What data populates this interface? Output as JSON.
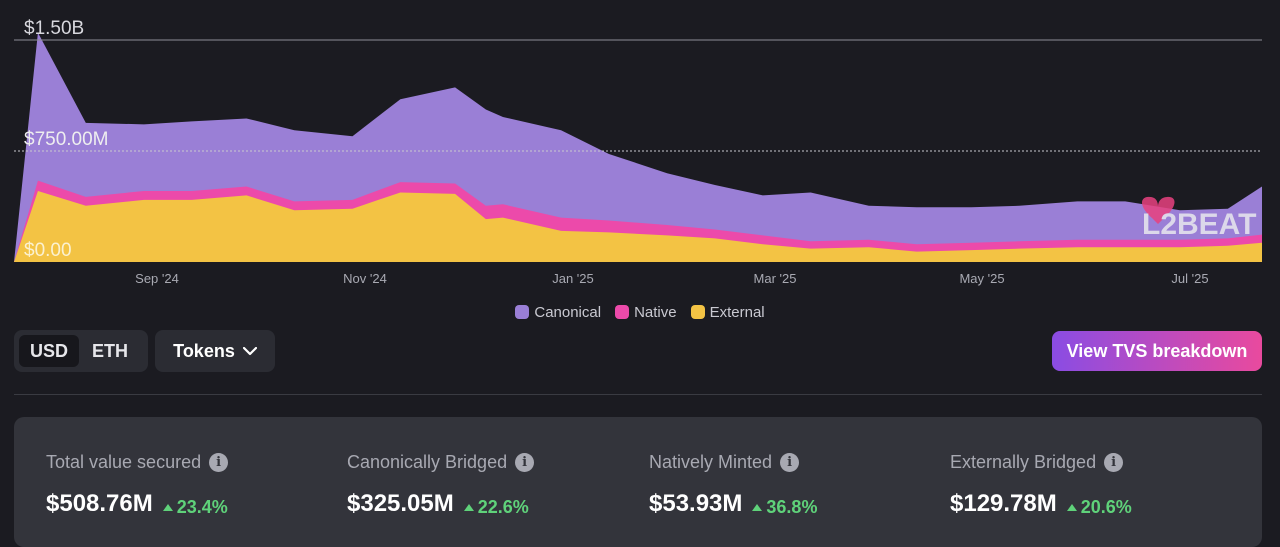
{
  "chart": {
    "y_ticks": [
      "$1.50B",
      "$750.00M",
      "$0.00"
    ],
    "x_ticks": [
      "Sep '24",
      "Nov '24",
      "Jan '25",
      "Mar '25",
      "May '25",
      "Jul '25"
    ],
    "watermark": "L2BEAT",
    "colors": {
      "canonical": "#9a7fd6",
      "native": "#ec4aaa",
      "external": "#f3c344"
    }
  },
  "chart_data": {
    "type": "area",
    "stacked": true,
    "ylim": [
      0,
      1500000000
    ],
    "x_tick_labels": [
      "Sep '24",
      "Nov '24",
      "Jan '25",
      "Mar '25",
      "May '25",
      "Jul '25"
    ],
    "y_tick_labels": [
      "$1.50B",
      "$750.00M",
      "$0.00"
    ],
    "grid": true,
    "legend": "bottom-center",
    "x": [
      "2024-08-01",
      "2024-08-15",
      "2024-09-01",
      "2024-09-15",
      "2024-10-01",
      "2024-10-15",
      "2024-11-01",
      "2024-11-15",
      "2024-12-01",
      "2024-12-10",
      "2024-12-15",
      "2025-01-01",
      "2025-01-15",
      "2025-02-01",
      "2025-02-15",
      "2025-03-01",
      "2025-03-15",
      "2025-04-01",
      "2025-04-15",
      "2025-05-01",
      "2025-05-15",
      "2025-06-01",
      "2025-06-15",
      "2025-07-01",
      "2025-07-15",
      "2025-07-25"
    ],
    "series": [
      {
        "name": "External",
        "values": [
          480,
          380,
          420,
          420,
          450,
          350,
          360,
          470,
          460,
          290,
          300,
          210,
          200,
          180,
          160,
          120,
          90,
          100,
          70,
          80,
          90,
          100,
          100,
          100,
          110,
          130
        ]
      },
      {
        "name": "Native",
        "values": [
          70,
          60,
          60,
          60,
          60,
          60,
          60,
          70,
          70,
          90,
          90,
          90,
          80,
          70,
          60,
          60,
          50,
          50,
          50,
          50,
          50,
          50,
          50,
          50,
          50,
          55
        ]
      },
      {
        "name": "Canonical",
        "values": [
          1000,
          500,
          450,
          470,
          460,
          480,
          430,
          560,
          650,
          650,
          590,
          590,
          450,
          350,
          300,
          270,
          330,
          230,
          250,
          240,
          240,
          260,
          260,
          200,
          200,
          325
        ]
      }
    ]
  },
  "legend": {
    "items": [
      {
        "label": "Canonical",
        "color": "#9a7fd6"
      },
      {
        "label": "Native",
        "color": "#ec4aaa"
      },
      {
        "label": "External",
        "color": "#f3c344"
      }
    ]
  },
  "controls": {
    "currency": {
      "options": [
        "USD",
        "ETH"
      ],
      "selected": "USD"
    },
    "tokens_label": "Tokens",
    "cta_label": "View TVS breakdown"
  },
  "stats": [
    {
      "label": "Total value secured",
      "value": "$508.76M",
      "change": "23.4%"
    },
    {
      "label": "Canonically Bridged",
      "value": "$325.05M",
      "change": "22.6%"
    },
    {
      "label": "Natively Minted",
      "value": "$53.93M",
      "change": "36.8%"
    },
    {
      "label": "Externally Bridged",
      "value": "$129.78M",
      "change": "20.6%"
    }
  ]
}
